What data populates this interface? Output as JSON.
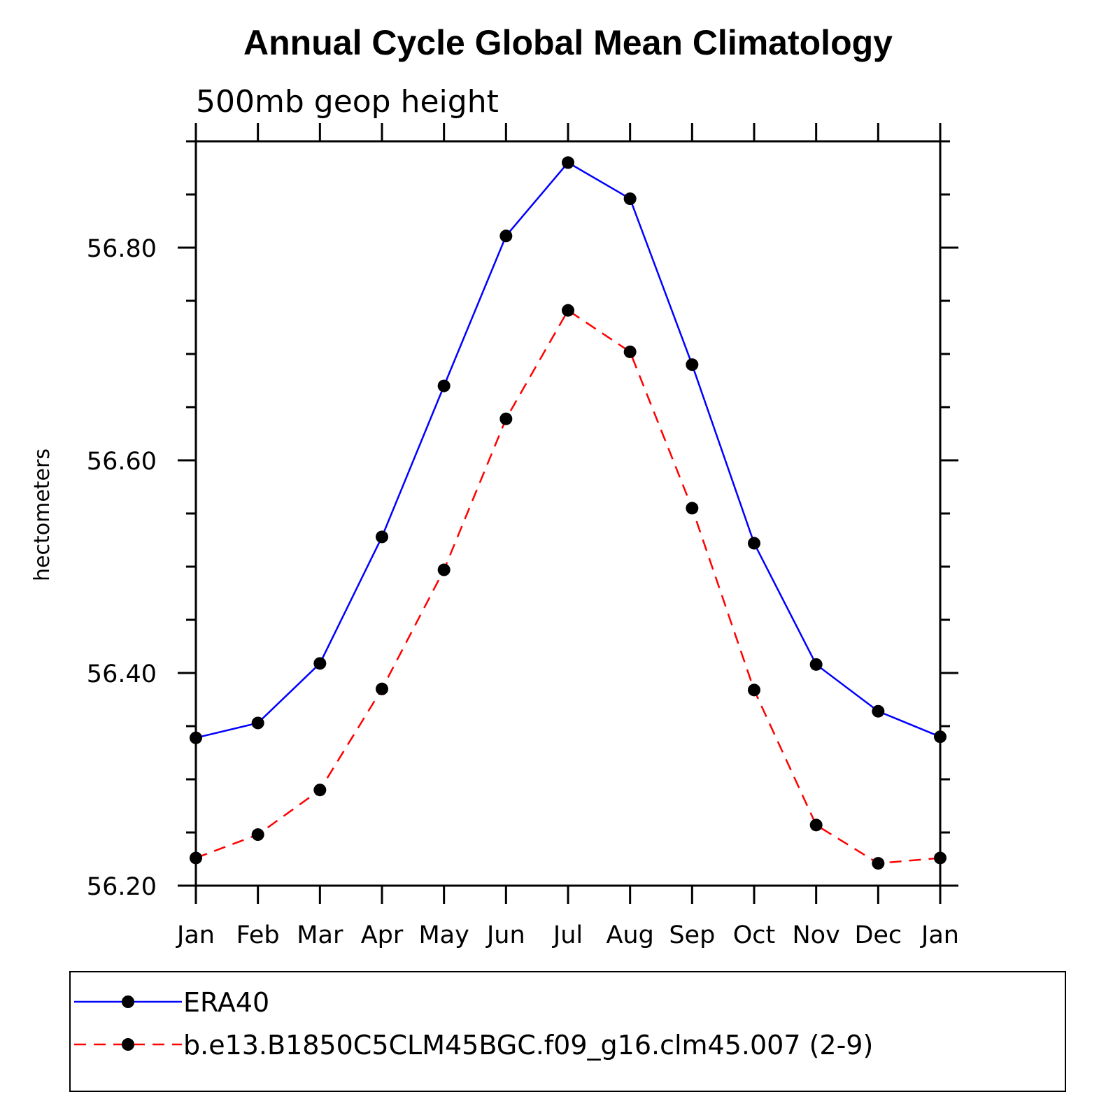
{
  "chart_data": {
    "type": "line",
    "title": "Annual Cycle Global Mean Climatology",
    "subtitle": "500mb geop height",
    "ylabel": "hectometers",
    "xlabel": "",
    "categories": [
      "Jan",
      "Feb",
      "Mar",
      "Apr",
      "May",
      "Jun",
      "Jul",
      "Aug",
      "Sep",
      "Oct",
      "Nov",
      "Dec",
      "Jan"
    ],
    "ylim": [
      56.2,
      56.9
    ],
    "yticks": [
      "56.20",
      "56.40",
      "56.60",
      "56.80"
    ],
    "ytick_values": [
      56.2,
      56.4,
      56.6,
      56.8
    ],
    "grid": false,
    "legend_position": "bottom",
    "series": [
      {
        "name": "ERA40",
        "color": "#0000ff",
        "line_style": "solid",
        "marker": "filled-circle",
        "values": [
          56.339,
          56.353,
          56.409,
          56.528,
          56.67,
          56.811,
          56.88,
          56.846,
          56.69,
          56.522,
          56.408,
          56.364,
          56.34
        ]
      },
      {
        "name": "b.e13.B1850C5CLM45BGC.f09_g16.clm45.007 (2-9)",
        "color": "#ff0000",
        "line_style": "dashed",
        "marker": "filled-circle",
        "values": [
          56.226,
          56.248,
          56.29,
          56.385,
          56.497,
          56.639,
          56.741,
          56.702,
          56.555,
          56.384,
          56.257,
          56.221,
          56.226
        ]
      }
    ]
  }
}
